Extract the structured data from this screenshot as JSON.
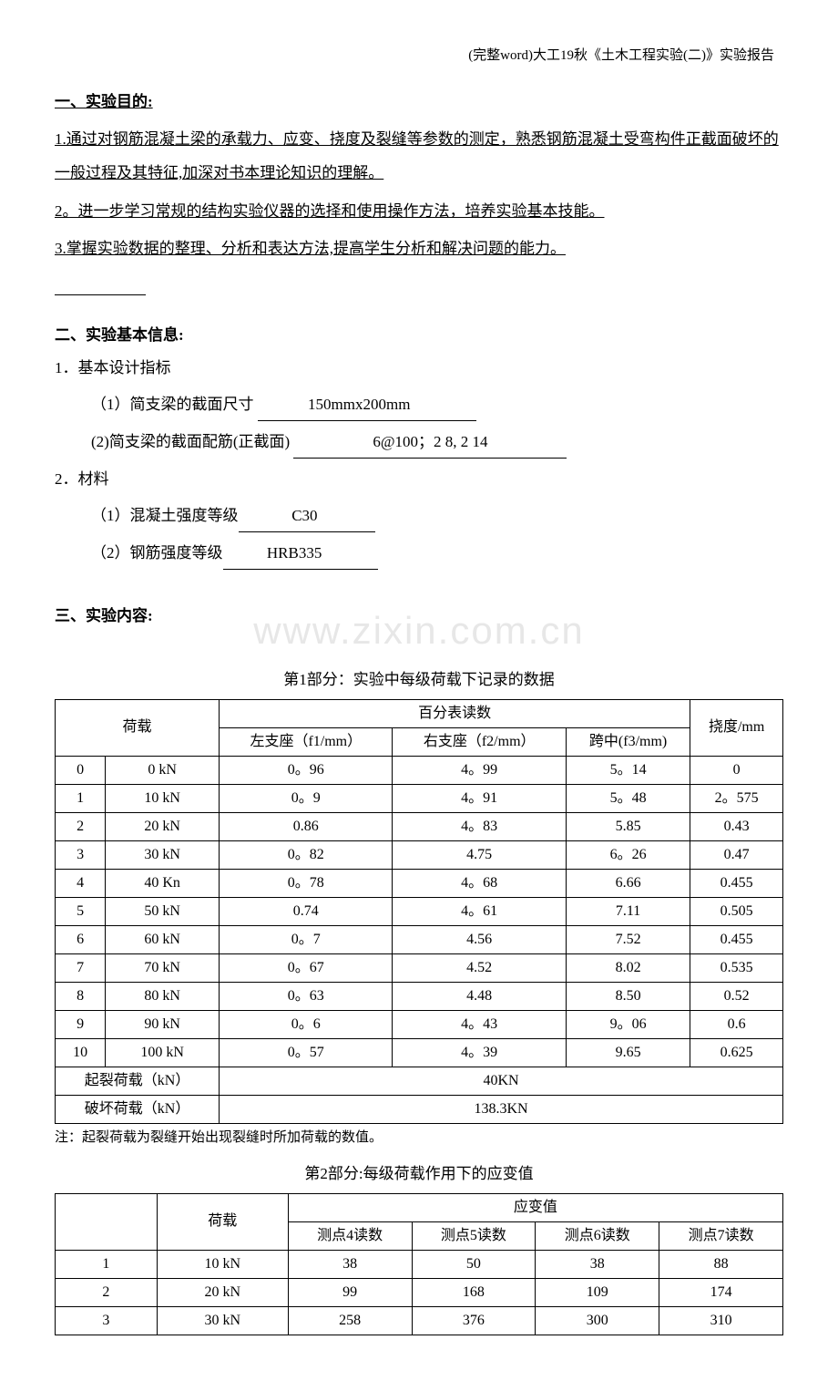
{
  "header": "(完整word)大工19秋《土木工程实验(二)》实验报告",
  "s1": {
    "title": "一、实验目的:",
    "l1": "1.通过对钢筋混凝土梁的承载力、应变、挠度及裂缝等参数的测定，熟悉钢筋混凝土受弯构件正截面破坏的一般过程及其特征,加深对书本理论知识的理解。",
    "l2": "2。进一步学习常规的结构实验仪器的选择和使用操作方法，培养实验基本技能。",
    "l3": "3.掌握实验数据的整理、分析和表达方法,提高学生分析和解决问题的能力。"
  },
  "s2": {
    "title": "二、实验基本信息:",
    "sub1": "1．基本设计指标",
    "r1_label": "（1）简支梁的截面尺寸 ",
    "r1_val": "150mmx200mm",
    "r2_label": "(2)简支梁的截面配筋(正截面) ",
    "r2_val": "  6@100；2 8, 2 14  ",
    "sub2": "2．材料",
    "r3_label": "（1）混凝土强度等级",
    "r3_val": "C30",
    "r4_label": "（2）钢筋强度等级",
    "r4_val": "HRB335"
  },
  "s3": {
    "title": "三、实验内容:"
  },
  "watermark": "www.zixin.com.cn",
  "t1": {
    "title": "第1部分：实验中每级荷载下记录的数据",
    "h_load": "荷载",
    "h_dial": "百分表读数",
    "h_def": "挠度/mm",
    "h_left": "左支座（f1/mm）",
    "h_right": "右支座（f2/mm）",
    "h_mid": "跨中(f3/mm)",
    "rows": [
      [
        "0",
        "0 kN",
        "0。96",
        "4。99",
        "5。14",
        "0"
      ],
      [
        "1",
        "10 kN",
        "0。9",
        "4。91",
        "5。48",
        "2。575"
      ],
      [
        "2",
        "20 kN",
        "0.86",
        "4。83",
        "5.85",
        "0.43"
      ],
      [
        "3",
        "30 kN",
        "0。82",
        "4.75",
        "6。26",
        "0.47"
      ],
      [
        "4",
        "40 Kn",
        "0。78",
        "4。68",
        "6.66",
        "0.455"
      ],
      [
        "5",
        "50 kN",
        "0.74",
        "4。61",
        "7.11",
        "0.505"
      ],
      [
        "6",
        "60 kN",
        "0。7",
        "4.56",
        "7.52",
        "0.455"
      ],
      [
        "7",
        "70 kN",
        "0。67",
        "4.52",
        "8.02",
        "0.535"
      ],
      [
        "8",
        "80 kN",
        "0。63",
        "4.48",
        "8.50",
        "0.52"
      ],
      [
        "9",
        "90 kN",
        "0。6",
        "4。43",
        "9。06",
        "0.6"
      ],
      [
        "10",
        "100 kN",
        "0。57",
        "4。39",
        "9.65",
        "0.625"
      ]
    ],
    "crack_label": "起裂荷载（kN）",
    "crack_val": "40KN",
    "fail_label": "破坏荷载（kN）",
    "fail_val": "138.3KN",
    "note": "注：起裂荷载为裂缝开始出现裂缝时所加荷载的数值。"
  },
  "t2": {
    "title": "第2部分:每级荷载作用下的应变值",
    "h_load": "荷载",
    "h_strain": "应变值",
    "h4": "测点4读数",
    "h5": "测点5读数",
    "h6": "测点6读数",
    "h7": "测点7读数",
    "rows": [
      [
        "1",
        "10 kN",
        "38",
        "50",
        "38",
        "88"
      ],
      [
        "2",
        "20 kN",
        "99",
        "168",
        "109",
        "174"
      ],
      [
        "3",
        "30 kN",
        "258",
        "376",
        "300",
        "310"
      ]
    ]
  },
  "style": {
    "page_bg": "#ffffff",
    "text_color": "#000000",
    "border_color": "#000000",
    "watermark_color": "#d8d8d8",
    "base_fontsize": 17,
    "table_fontsize": 16
  }
}
